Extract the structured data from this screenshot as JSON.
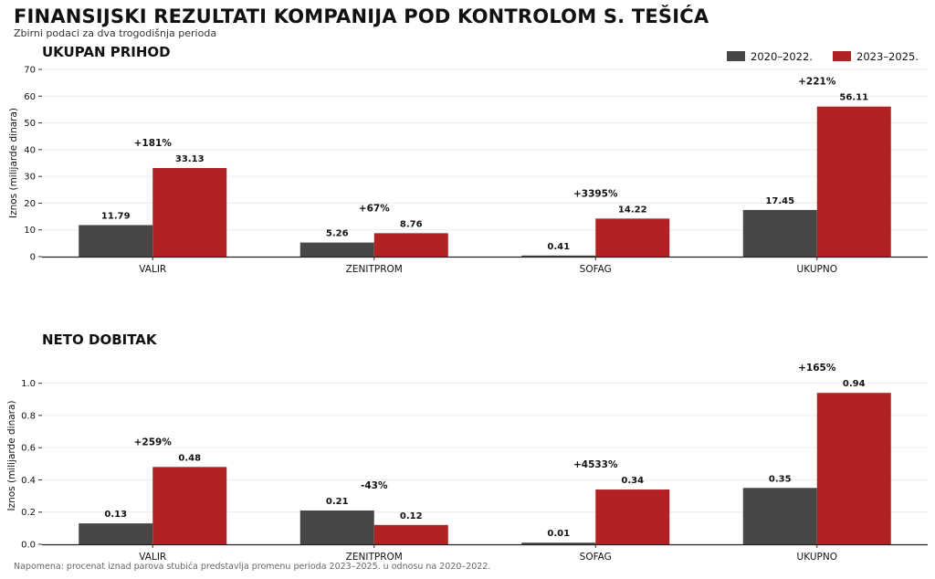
{
  "title": "FINANSIJSKI REZULTATI KOMPANIJA POD KONTROLOM S. TEŠIĆA",
  "subtitle": "Zbirni podaci za dva trogodišnja perioda",
  "footnote": "Napomena: procenat iznad parova stubića predstavlja promenu perioda 2023–2025. u odnosu na 2020–2022.",
  "legend": {
    "placement": "top-right",
    "items": [
      {
        "name": "2020–2022.",
        "color": "#474747"
      },
      {
        "name": "2023–2025.",
        "color": "#b22222"
      }
    ]
  },
  "chart_data": [
    {
      "type": "bar",
      "title": "UKUPAN PRIHOD",
      "ylabel": "Iznos (milijarde dinara)",
      "categories": [
        "VALIR",
        "ZENITPROM",
        "SOFAG",
        "UKUPNO"
      ],
      "series": [
        {
          "name": "2020–2022.",
          "values": [
            11.79,
            5.26,
            0.41,
            17.45
          ],
          "color": "#474747"
        },
        {
          "name": "2023–2025.",
          "values": [
            33.13,
            8.76,
            14.22,
            56.11
          ],
          "color": "#b22222"
        }
      ],
      "value_labels": [
        [
          "11.79",
          "5.26",
          "0.41",
          "17.45"
        ],
        [
          "33.13",
          "8.76",
          "14.22",
          "56.11"
        ]
      ],
      "changes": [
        "+181%",
        "+67%",
        "+3395%",
        "+221%"
      ],
      "ylim": [
        0,
        70
      ],
      "yticks": [
        0,
        10,
        20,
        30,
        40,
        50,
        60,
        70
      ],
      "ytick_labels": [
        "0",
        "10",
        "20",
        "30",
        "40",
        "50",
        "60",
        "70"
      ],
      "grid": true
    },
    {
      "type": "bar",
      "title": "NETO DOBITAK",
      "ylabel": "Iznos (milijarde dinara)",
      "categories": [
        "VALIR",
        "ZENITPROM",
        "SOFAG",
        "UKUPNO"
      ],
      "series": [
        {
          "name": "2020–2022.",
          "values": [
            0.13,
            0.21,
            0.01,
            0.35
          ],
          "color": "#474747"
        },
        {
          "name": "2023–2025.",
          "values": [
            0.48,
            0.12,
            0.34,
            0.94
          ],
          "color": "#b22222"
        }
      ],
      "value_labels": [
        [
          "0.13",
          "0.21",
          "0.01",
          "0.35"
        ],
        [
          "0.48",
          "0.12",
          "0.34",
          "0.94"
        ]
      ],
      "changes": [
        "+259%",
        "-43%",
        "+4533%",
        "+165%"
      ],
      "ylim": [
        0,
        1.1
      ],
      "yticks": [
        0,
        0.2,
        0.4,
        0.6,
        0.8,
        1.0
      ],
      "ytick_labels": [
        "0.0",
        "0.2",
        "0.4",
        "0.6",
        "0.8",
        "1.0"
      ],
      "grid": true
    }
  ]
}
